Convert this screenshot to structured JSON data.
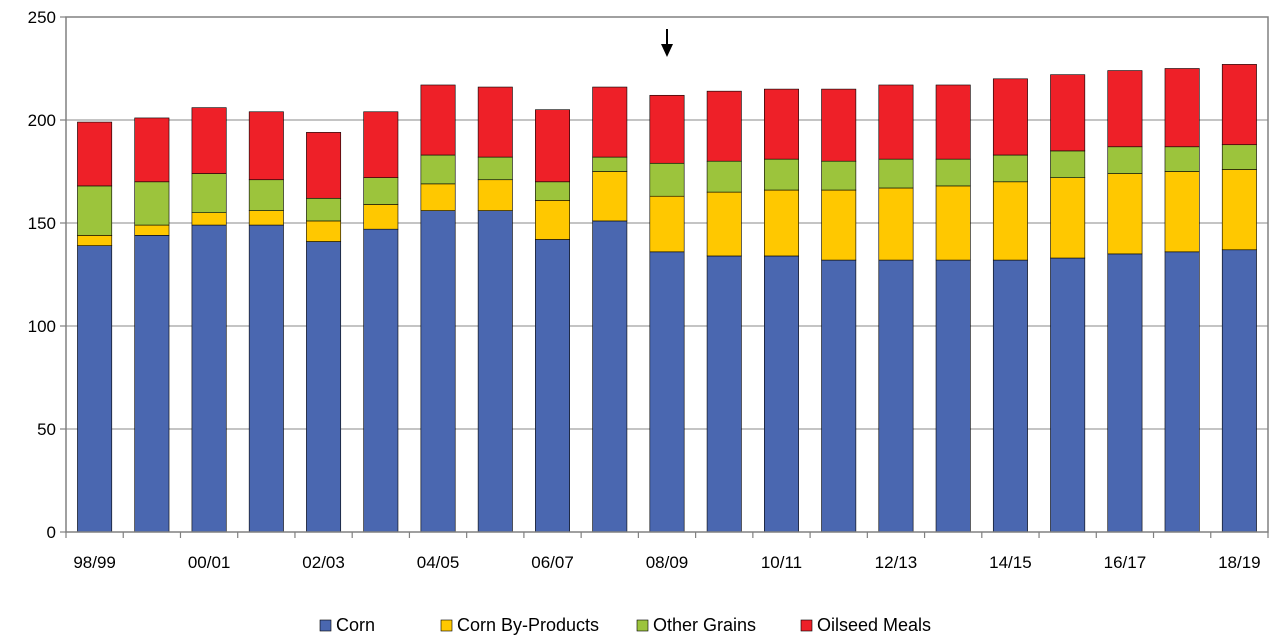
{
  "chart_data": {
    "type": "bar",
    "stacked": true,
    "categories": [
      "98/99",
      "99/00",
      "00/01",
      "01/02",
      "02/03",
      "03/04",
      "04/05",
      "05/06",
      "06/07",
      "07/08",
      "08/09",
      "09/10",
      "10/11",
      "11/12",
      "12/13",
      "13/14",
      "14/15",
      "15/16",
      "16/17",
      "17/18",
      "18/19"
    ],
    "x_tick_labels_shown": [
      "98/99",
      "00/01",
      "02/03",
      "04/05",
      "06/07",
      "08/09",
      "10/11",
      "12/13",
      "14/15",
      "16/17",
      "18/19"
    ],
    "series": [
      {
        "name": "Corn",
        "color": "#4a67b0",
        "values": [
          139,
          144,
          149,
          149,
          141,
          147,
          156,
          156,
          142,
          151,
          136,
          134,
          134,
          132,
          132,
          132,
          132,
          133,
          135,
          136,
          137
        ]
      },
      {
        "name": "Corn By-Products",
        "color": "#ffc800",
        "values": [
          5,
          5,
          6,
          7,
          10,
          12,
          13,
          15,
          19,
          24,
          27,
          31,
          32,
          34,
          35,
          36,
          38,
          39,
          39,
          39,
          39
        ]
      },
      {
        "name": "Other Grains",
        "color": "#9cc43c",
        "values": [
          24,
          21,
          19,
          15,
          11,
          13,
          14,
          11,
          9,
          7,
          16,
          15,
          15,
          14,
          14,
          13,
          13,
          13,
          13,
          12,
          12
        ]
      },
      {
        "name": "Oilseed Meals",
        "color": "#ee2028",
        "values": [
          31,
          31,
          32,
          33,
          32,
          32,
          34,
          34,
          35,
          34,
          33,
          34,
          34,
          35,
          36,
          36,
          37,
          37,
          37,
          38,
          39
        ]
      }
    ],
    "ylim": [
      0,
      250
    ],
    "yticks": [
      0,
      50,
      100,
      150,
      200,
      250
    ],
    "arrow_at_category": "08/09",
    "grid": true,
    "legend_position": "bottom-center",
    "title": "",
    "xlabel": "",
    "ylabel": ""
  }
}
